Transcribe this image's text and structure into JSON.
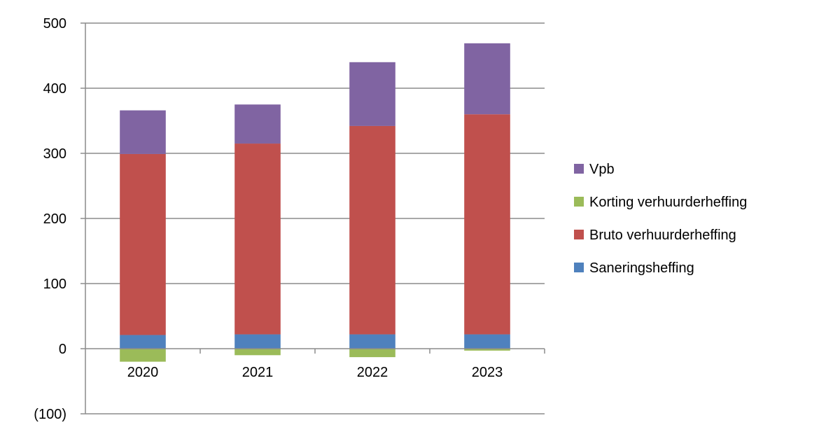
{
  "chart_data": {
    "type": "bar",
    "stacked": true,
    "categories": [
      "2020",
      "2021",
      "2022",
      "2023"
    ],
    "series": [
      {
        "name": "Saneringsheffing",
        "color": "#4F81BD",
        "values": [
          21,
          22,
          22,
          22
        ]
      },
      {
        "name": "Bruto verhuurderheffing",
        "color": "#C0504D",
        "values": [
          278,
          293,
          320,
          338
        ]
      },
      {
        "name": "Korting verhuurderheffing",
        "color": "#9BBB59",
        "values": [
          -20,
          -10,
          -13,
          -3
        ]
      },
      {
        "name": "Vpb",
        "color": "#8064A2",
        "values": [
          67,
          60,
          98,
          109
        ]
      }
    ],
    "legend_order": [
      "Vpb",
      "Korting verhuurderheffing",
      "Bruto verhuurderheffing",
      "Saneringsheffing"
    ],
    "y_ticks": [
      {
        "value": 500,
        "label": "500"
      },
      {
        "value": 400,
        "label": "400"
      },
      {
        "value": 300,
        "label": "300"
      },
      {
        "value": 200,
        "label": "200"
      },
      {
        "value": 100,
        "label": "100"
      },
      {
        "value": 0,
        "label": "0"
      },
      {
        "value": -100,
        "label": "(100)"
      }
    ],
    "ylim": [
      -100,
      500
    ],
    "grid": true,
    "legend_position": "right",
    "title": "",
    "xlabel": "",
    "ylabel": ""
  }
}
